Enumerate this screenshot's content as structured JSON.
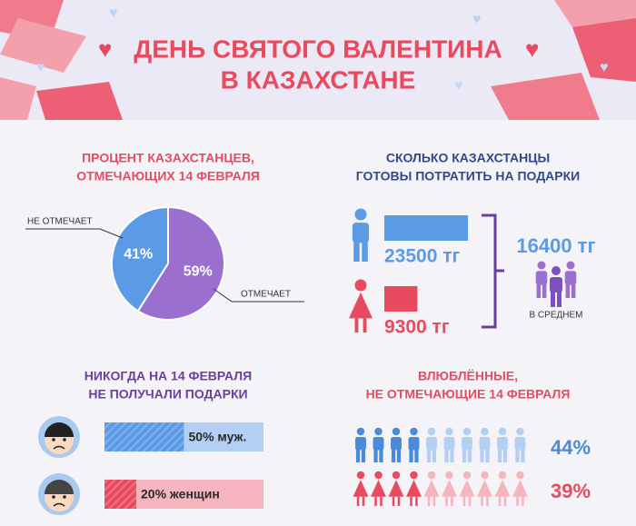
{
  "header": {
    "title": [
      "ДЕНЬ СВЯТОГО ВАЛЕНТИНА",
      "В КАЗАХСТАНЕ"
    ]
  },
  "chart_data": [
    {
      "type": "pie",
      "title": [
        "ПРОЦЕНТ КАЗАХСТАНЦЕВ,",
        "ОТМЕЧАЮЩИХ 14 ФЕВРАЛЯ"
      ],
      "categories": [
        "НЕ ОТМЕЧАЕТ",
        "ОТМЕЧАЕТ"
      ],
      "values": [
        41,
        59
      ],
      "value_labels": [
        "41%",
        "59%"
      ],
      "colors": [
        "#5b9be6",
        "#9b6fd0"
      ]
    },
    {
      "type": "bar",
      "title": [
        "СКОЛЬКО КАЗАХСТАНЦЫ",
        "ГОТОВЫ ПОТРАТИТЬ НА ПОДАРКИ"
      ],
      "values": [
        23500,
        9300
      ],
      "value_labels": [
        "23500 тг",
        "9300 тг"
      ],
      "colors": [
        "#5b9be6",
        "#e84a5f"
      ],
      "average": 16400,
      "average_label": "16400 тг",
      "average_caption": "В СРЕДНЕМ"
    },
    {
      "type": "progress",
      "title": [
        "НИКОГДА НА 14 ФЕВРАЛЯ",
        "НЕ ПОЛУЧАЛИ ПОДАРКИ"
      ],
      "values": [
        50,
        20
      ],
      "value_labels": [
        "50% муж.",
        "20% женщин"
      ],
      "colors": [
        "#5b9be6",
        "#e84a5f"
      ],
      "xlim": [
        0,
        100
      ]
    },
    {
      "type": "pictogram",
      "title": [
        "ВЛЮБЛЁННЫЕ,",
        "НЕ ОТМЕЧАЮЩИЕ 14 ФЕВРАЛЯ"
      ],
      "values": [
        44,
        39
      ],
      "value_labels": [
        "44%",
        "39%"
      ],
      "colors": [
        "#4a8ad8",
        "#e84a5f"
      ],
      "xlim": [
        0,
        100
      ]
    }
  ]
}
